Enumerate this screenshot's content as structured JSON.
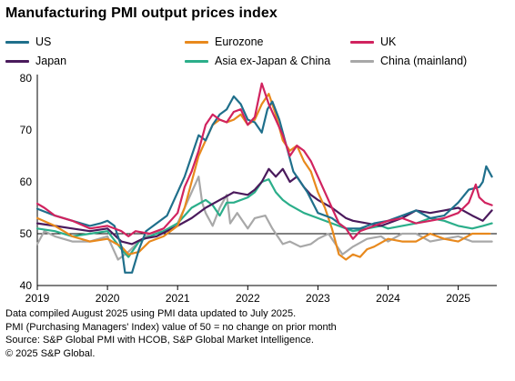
{
  "title": "Manufacturing PMI output prices index",
  "colors": {
    "US": "#1f6f8b",
    "Eurozone": "#e8891d",
    "UK": "#d1235f",
    "Japan": "#4a1a5c",
    "Asia ex-Japan & China": "#2bae8a",
    "China (mainland)": "#a8a8a8"
  },
  "footer": {
    "line1": "Data compiled August 2025 using PMI data updated to July 2025.",
    "line2": "PMI (Purchasing Managers' Index) value of 50 = no change on prior month",
    "line3": "Source: S&P Global PMI with HCOB, S&P Global Market Intelligence.",
    "line4": "© 2025 S&P Global."
  },
  "chart_data": {
    "type": "line",
    "title": "Manufacturing PMI output prices index",
    "xlabel": "",
    "ylabel": "",
    "x_ticks": [
      "2019",
      "2020",
      "2021",
      "2022",
      "2023",
      "2024",
      "2025"
    ],
    "x_range": [
      "2019-01",
      "2025-07"
    ],
    "ylim": [
      40,
      80
    ],
    "y_ticks": [
      40,
      50,
      60,
      70,
      80
    ],
    "reference_line": 50,
    "grid": false,
    "legend": "top",
    "series": [
      {
        "name": "US",
        "values": [
          [
            2019.0,
            54.8
          ],
          [
            2019.25,
            53.5
          ],
          [
            2019.5,
            52.5
          ],
          [
            2019.75,
            51.5
          ],
          [
            2019.9,
            52
          ],
          [
            2020.0,
            52.5
          ],
          [
            2020.1,
            51.5
          ],
          [
            2020.2,
            47.5
          ],
          [
            2020.25,
            42.5
          ],
          [
            2020.35,
            42.5
          ],
          [
            2020.45,
            47
          ],
          [
            2020.55,
            50.5
          ],
          [
            2020.7,
            52
          ],
          [
            2020.85,
            53.5
          ],
          [
            2021.0,
            58
          ],
          [
            2021.1,
            61
          ],
          [
            2021.2,
            65
          ],
          [
            2021.3,
            69
          ],
          [
            2021.4,
            68
          ],
          [
            2021.5,
            71
          ],
          [
            2021.6,
            73
          ],
          [
            2021.7,
            74
          ],
          [
            2021.8,
            76.5
          ],
          [
            2021.9,
            75
          ],
          [
            2022.0,
            72
          ],
          [
            2022.1,
            71.5
          ],
          [
            2022.2,
            69.5
          ],
          [
            2022.28,
            74
          ],
          [
            2022.35,
            75.5
          ],
          [
            2022.45,
            72
          ],
          [
            2022.55,
            67
          ],
          [
            2022.65,
            62
          ],
          [
            2022.75,
            60
          ],
          [
            2022.85,
            58
          ],
          [
            2023.0,
            54
          ],
          [
            2023.2,
            53
          ],
          [
            2023.4,
            51
          ],
          [
            2023.6,
            51
          ],
          [
            2023.8,
            52
          ],
          [
            2024.0,
            52.5
          ],
          [
            2024.2,
            53.5
          ],
          [
            2024.4,
            54.5
          ],
          [
            2024.6,
            53
          ],
          [
            2024.8,
            53.5
          ],
          [
            2025.0,
            56
          ],
          [
            2025.15,
            58.5
          ],
          [
            2025.3,
            59
          ],
          [
            2025.35,
            60
          ],
          [
            2025.4,
            63
          ],
          [
            2025.48,
            61
          ]
        ]
      },
      {
        "name": "Eurozone",
        "values": [
          [
            2019.0,
            53
          ],
          [
            2019.25,
            51.5
          ],
          [
            2019.5,
            49.5
          ],
          [
            2019.75,
            48.5
          ],
          [
            2020.0,
            49
          ],
          [
            2020.2,
            47.5
          ],
          [
            2020.3,
            46
          ],
          [
            2020.45,
            46.5
          ],
          [
            2020.6,
            48.5
          ],
          [
            2020.8,
            49.5
          ],
          [
            2021.0,
            51.5
          ],
          [
            2021.1,
            55
          ],
          [
            2021.2,
            60
          ],
          [
            2021.3,
            65
          ],
          [
            2021.4,
            68
          ],
          [
            2021.5,
            71
          ],
          [
            2021.6,
            72
          ],
          [
            2021.7,
            71.5
          ],
          [
            2021.8,
            72
          ],
          [
            2021.9,
            73
          ],
          [
            2022.0,
            71
          ],
          [
            2022.1,
            72
          ],
          [
            2022.2,
            75
          ],
          [
            2022.3,
            77
          ],
          [
            2022.4,
            73
          ],
          [
            2022.5,
            68
          ],
          [
            2022.6,
            66
          ],
          [
            2022.7,
            67
          ],
          [
            2022.8,
            64
          ],
          [
            2022.9,
            62
          ],
          [
            2023.0,
            58
          ],
          [
            2023.1,
            55
          ],
          [
            2023.2,
            51
          ],
          [
            2023.3,
            46
          ],
          [
            2023.4,
            45
          ],
          [
            2023.5,
            46
          ],
          [
            2023.6,
            45.5
          ],
          [
            2023.7,
            47
          ],
          [
            2023.8,
            47.5
          ],
          [
            2024.0,
            49
          ],
          [
            2024.2,
            48.5
          ],
          [
            2024.4,
            48.5
          ],
          [
            2024.6,
            50
          ],
          [
            2024.8,
            49
          ],
          [
            2025.0,
            48.5
          ],
          [
            2025.2,
            50
          ],
          [
            2025.3,
            50
          ],
          [
            2025.45,
            50
          ]
        ]
      },
      {
        "name": "UK",
        "values": [
          [
            2019.0,
            55.8
          ],
          [
            2019.1,
            55
          ],
          [
            2019.25,
            53.5
          ],
          [
            2019.5,
            52.5
          ],
          [
            2019.75,
            51
          ],
          [
            2020.0,
            51.5
          ],
          [
            2020.2,
            50.5
          ],
          [
            2020.3,
            49.5
          ],
          [
            2020.4,
            50.5
          ],
          [
            2020.6,
            50
          ],
          [
            2020.8,
            51
          ],
          [
            2021.0,
            54
          ],
          [
            2021.1,
            59
          ],
          [
            2021.2,
            62
          ],
          [
            2021.3,
            66
          ],
          [
            2021.4,
            71
          ],
          [
            2021.5,
            73
          ],
          [
            2021.6,
            72
          ],
          [
            2021.7,
            71.5
          ],
          [
            2021.8,
            73.5
          ],
          [
            2021.9,
            74
          ],
          [
            2022.0,
            71
          ],
          [
            2022.1,
            72.5
          ],
          [
            2022.2,
            79
          ],
          [
            2022.3,
            75
          ],
          [
            2022.4,
            72
          ],
          [
            2022.5,
            69
          ],
          [
            2022.6,
            65
          ],
          [
            2022.7,
            67
          ],
          [
            2022.8,
            66
          ],
          [
            2022.9,
            64
          ],
          [
            2023.0,
            61
          ],
          [
            2023.1,
            58
          ],
          [
            2023.2,
            55
          ],
          [
            2023.3,
            52
          ],
          [
            2023.4,
            51
          ],
          [
            2023.5,
            49
          ],
          [
            2023.6,
            50.5
          ],
          [
            2023.7,
            51
          ],
          [
            2023.8,
            51.5
          ],
          [
            2024.0,
            52.5
          ],
          [
            2024.2,
            53
          ],
          [
            2024.4,
            52
          ],
          [
            2024.6,
            52.5
          ],
          [
            2024.8,
            53
          ],
          [
            2025.0,
            54
          ],
          [
            2025.15,
            56
          ],
          [
            2025.25,
            59.5
          ],
          [
            2025.3,
            57
          ],
          [
            2025.38,
            56
          ],
          [
            2025.48,
            55.5
          ]
        ]
      },
      {
        "name": "Japan",
        "values": [
          [
            2019.0,
            52
          ],
          [
            2019.25,
            51.5
          ],
          [
            2019.5,
            51
          ],
          [
            2019.75,
            50.5
          ],
          [
            2020.0,
            51
          ],
          [
            2020.2,
            48.5
          ],
          [
            2020.35,
            48
          ],
          [
            2020.5,
            49
          ],
          [
            2020.7,
            49.5
          ],
          [
            2021.0,
            51.5
          ],
          [
            2021.2,
            53
          ],
          [
            2021.4,
            55
          ],
          [
            2021.6,
            56.5
          ],
          [
            2021.8,
            58
          ],
          [
            2022.0,
            57.5
          ],
          [
            2022.1,
            58.5
          ],
          [
            2022.2,
            60
          ],
          [
            2022.3,
            62.5
          ],
          [
            2022.4,
            61
          ],
          [
            2022.5,
            62.5
          ],
          [
            2022.6,
            60
          ],
          [
            2022.7,
            61
          ],
          [
            2022.8,
            59
          ],
          [
            2022.9,
            57.5
          ],
          [
            2023.0,
            56.5
          ],
          [
            2023.2,
            55
          ],
          [
            2023.4,
            53
          ],
          [
            2023.5,
            52.5
          ],
          [
            2023.7,
            52
          ],
          [
            2023.9,
            51.5
          ],
          [
            2024.0,
            52
          ],
          [
            2024.2,
            53
          ],
          [
            2024.4,
            54.5
          ],
          [
            2024.6,
            54
          ],
          [
            2024.8,
            54.5
          ],
          [
            2025.0,
            55
          ],
          [
            2025.2,
            53.5
          ],
          [
            2025.35,
            52.5
          ],
          [
            2025.48,
            54.5
          ]
        ]
      },
      {
        "name": "Asia ex-Japan & China",
        "values": [
          [
            2019.0,
            51
          ],
          [
            2019.25,
            50.5
          ],
          [
            2019.5,
            49.5
          ],
          [
            2019.75,
            50
          ],
          [
            2020.0,
            50.5
          ],
          [
            2020.2,
            47
          ],
          [
            2020.3,
            45.5
          ],
          [
            2020.45,
            48.5
          ],
          [
            2020.6,
            49.5
          ],
          [
            2020.8,
            50.5
          ],
          [
            2021.0,
            52
          ],
          [
            2021.2,
            55
          ],
          [
            2021.4,
            56.5
          ],
          [
            2021.5,
            55.5
          ],
          [
            2021.6,
            53.5
          ],
          [
            2021.7,
            56
          ],
          [
            2021.8,
            56
          ],
          [
            2022.0,
            57
          ],
          [
            2022.1,
            58
          ],
          [
            2022.2,
            60
          ],
          [
            2022.3,
            60.5
          ],
          [
            2022.4,
            58
          ],
          [
            2022.5,
            56.5
          ],
          [
            2022.6,
            55.5
          ],
          [
            2022.8,
            54
          ],
          [
            2023.0,
            53
          ],
          [
            2023.2,
            52
          ],
          [
            2023.4,
            51
          ],
          [
            2023.5,
            50.5
          ],
          [
            2023.7,
            51
          ],
          [
            2023.9,
            51.5
          ],
          [
            2024.0,
            51
          ],
          [
            2024.2,
            51.5
          ],
          [
            2024.4,
            52
          ],
          [
            2024.6,
            53
          ],
          [
            2024.8,
            52.5
          ],
          [
            2025.0,
            51.5
          ],
          [
            2025.2,
            51
          ],
          [
            2025.35,
            51.5
          ],
          [
            2025.48,
            52
          ]
        ]
      },
      {
        "name": "China (mainland)",
        "values": [
          [
            2019.0,
            48
          ],
          [
            2019.1,
            50.5
          ],
          [
            2019.25,
            49.5
          ],
          [
            2019.5,
            48.5
          ],
          [
            2019.75,
            48.5
          ],
          [
            2020.0,
            49.5
          ],
          [
            2020.15,
            45
          ],
          [
            2020.3,
            46.5
          ],
          [
            2020.45,
            48.5
          ],
          [
            2020.6,
            50
          ],
          [
            2020.8,
            50.5
          ],
          [
            2021.0,
            52
          ],
          [
            2021.1,
            55
          ],
          [
            2021.2,
            58
          ],
          [
            2021.3,
            61
          ],
          [
            2021.35,
            56
          ],
          [
            2021.4,
            54
          ],
          [
            2021.5,
            51.5
          ],
          [
            2021.6,
            55
          ],
          [
            2021.7,
            57.5
          ],
          [
            2021.75,
            52
          ],
          [
            2021.85,
            54
          ],
          [
            2022.0,
            51
          ],
          [
            2022.1,
            53
          ],
          [
            2022.25,
            53.5
          ],
          [
            2022.35,
            51
          ],
          [
            2022.5,
            48
          ],
          [
            2022.6,
            48.5
          ],
          [
            2022.75,
            47.5
          ],
          [
            2022.9,
            48
          ],
          [
            2023.0,
            49
          ],
          [
            2023.15,
            50
          ],
          [
            2023.25,
            48
          ],
          [
            2023.35,
            46
          ],
          [
            2023.5,
            47.5
          ],
          [
            2023.7,
            49
          ],
          [
            2023.9,
            49.5
          ],
          [
            2024.0,
            48.5
          ],
          [
            2024.2,
            50
          ],
          [
            2024.4,
            50
          ],
          [
            2024.6,
            48.5
          ],
          [
            2024.8,
            49
          ],
          [
            2025.0,
            49.5
          ],
          [
            2025.2,
            48.5
          ],
          [
            2025.35,
            48.5
          ],
          [
            2025.48,
            48.5
          ]
        ]
      }
    ]
  }
}
